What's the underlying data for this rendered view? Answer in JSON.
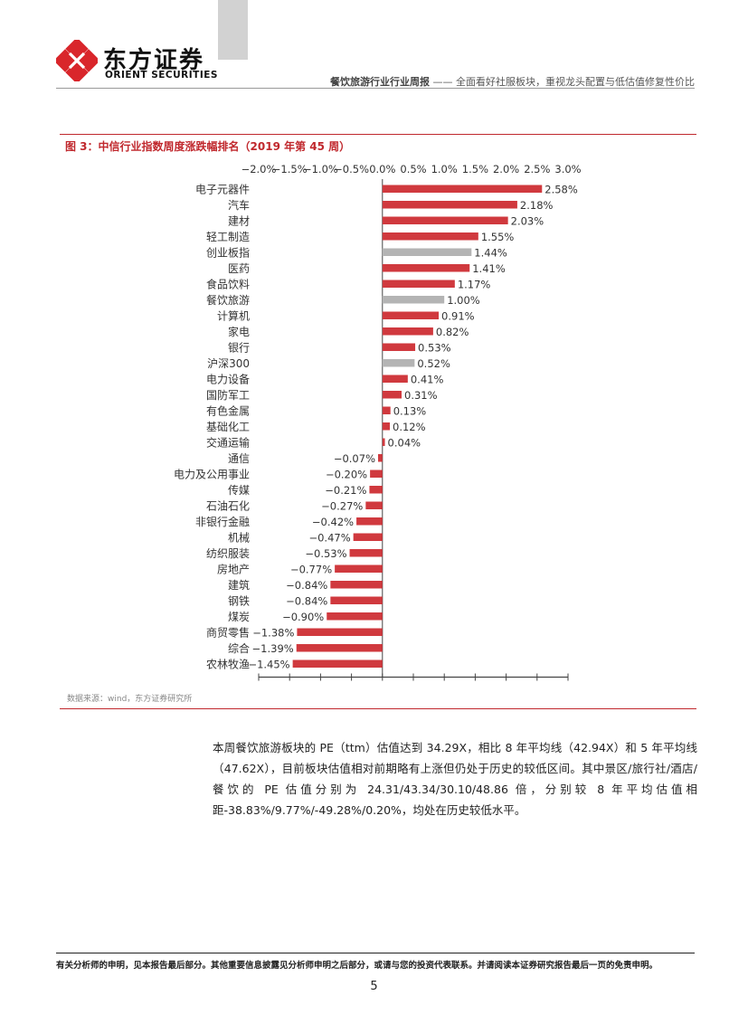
{
  "header": {
    "logo_cn": "东方证券",
    "logo_en": "ORIENT SECURITIES",
    "report_type": "餐饮旅游行业行业周报",
    "report_sep": " —— ",
    "report_subtitle": "全面看好社服板块，重视龙头配置与低估值修复性价比"
  },
  "figure": {
    "title": "图 3：中信行业指数周度涨跌幅排名（2019 年第 45 周）",
    "source": "数据来源：wind，东方证券研究所"
  },
  "chart_data": {
    "type": "bar",
    "orientation": "horizontal",
    "title": "中信行业指数周度涨跌幅排名（2019 年第 45 周）",
    "xlim": [
      -2.0,
      3.0
    ],
    "tick_labels": [
      "−2.0%",
      "−1.5%",
      "−1.0%",
      "−0.5%",
      "0.0%",
      "0.5%",
      "1.0%",
      "1.5%",
      "2.0%",
      "2.5%",
      "3.0%"
    ],
    "categories": [
      "电子元器件",
      "汽车",
      "建材",
      "轻工制造",
      "创业板指",
      "医药",
      "食品饮料",
      "餐饮旅游",
      "计算机",
      "家电",
      "银行",
      "沪深300",
      "电力设备",
      "国防军工",
      "有色金属",
      "基础化工",
      "交通运输",
      "通信",
      "电力及公用事业",
      "传媒",
      "石油石化",
      "非银行金融",
      "机械",
      "纺织服装",
      "房地产",
      "建筑",
      "钢铁",
      "煤炭",
      "商贸零售",
      "综合",
      "农林牧渔"
    ],
    "values": [
      2.58,
      2.18,
      2.03,
      1.55,
      1.44,
      1.41,
      1.17,
      1.0,
      0.91,
      0.82,
      0.53,
      0.52,
      0.41,
      0.31,
      0.13,
      0.12,
      0.04,
      -0.07,
      -0.2,
      -0.21,
      -0.27,
      -0.42,
      -0.47,
      -0.53,
      -0.77,
      -0.84,
      -0.84,
      -0.9,
      -1.38,
      -1.39,
      -1.45
    ],
    "value_labels": [
      "2.58%",
      "2.18%",
      "2.03%",
      "1.55%",
      "1.44%",
      "1.41%",
      "1.17%",
      "1.00%",
      "0.91%",
      "0.82%",
      "0.53%",
      "0.52%",
      "0.41%",
      "0.31%",
      "0.13%",
      "0.12%",
      "0.04%",
      "−0.07%",
      "−0.20%",
      "−0.21%",
      "−0.27%",
      "−0.42%",
      "−0.47%",
      "−0.53%",
      "−0.77%",
      "−0.84%",
      "−0.84%",
      "−0.90%",
      "−1.38%",
      "−1.39%",
      "−1.45%"
    ],
    "highlight_categories": [
      "创业板指",
      "餐饮旅游",
      "沪深300"
    ],
    "colors": {
      "default": "#d0393e",
      "highlight": "#b4b4b4",
      "axis": "#444444"
    }
  },
  "body": {
    "paragraph": "本周餐饮旅游板块的 PE（ttm）估值达到 34.29X，相比 8 年平均线（42.94X）和 5 年平均线（47.62X），目前板块估值相对前期略有上涨但仍处于历史的较低区间。其中景区/旅行社/酒店/餐饮的 PE 估值分别为 24.31/43.34/30.10/48.86 倍，分别较 8 年平均估值相距-38.83%/9.77%/-49.28%/0.20%，均处在历史较低水平。"
  },
  "footer": {
    "disclaimer": "有关分析师的申明，见本报告最后部分。其他重要信息披露见分析师申明之后部分，或请与您的投资代表联系。并请阅读本证券研究报告最后一页的免责申明。",
    "page_number": "5"
  },
  "colors": {
    "brand_red": "#c0282d",
    "logo_red": "#d9262b"
  }
}
